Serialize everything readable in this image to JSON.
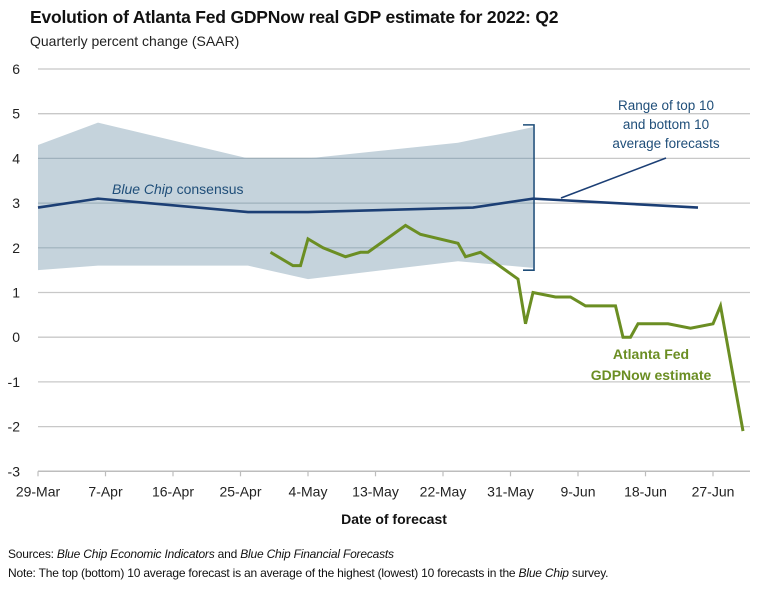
{
  "chart_data": {
    "type": "line",
    "title": "Evolution of Atlanta Fed GDPNow real GDP estimate for 2022: Q2",
    "subtitle": "Quarterly percent change (SAAR)",
    "xlabel": "Date of forecast",
    "ylabel": "",
    "x_ticks": [
      "29-Mar",
      "7-Apr",
      "16-Apr",
      "25-Apr",
      "4-May",
      "13-May",
      "22-May",
      "31-May",
      "9-Jun",
      "18-Jun",
      "27-Jun"
    ],
    "x_tick_days": [
      0,
      9,
      18,
      27,
      36,
      45,
      54,
      63,
      72,
      81,
      90
    ],
    "x_range_days": [
      0,
      95
    ],
    "x_origin": "29-Mar-2022",
    "y_ticks": [
      6,
      5,
      4,
      3,
      2,
      1,
      0,
      -1,
      -2,
      -3
    ],
    "ylim": [
      -3,
      6
    ],
    "grid": true,
    "series": [
      {
        "name": "Range of top 10 and bottom 10 average forecasts",
        "kind": "band",
        "color": "#c5d3dc",
        "x_days": [
          0,
          8,
          28,
          36,
          56,
          66
        ],
        "dates": [
          "29-Mar",
          "6-Apr",
          "26-Apr",
          "4-May",
          "24-May",
          "3-Jun"
        ],
        "upper": [
          4.3,
          4.8,
          4.0,
          4.0,
          4.35,
          4.7
        ],
        "lower": [
          1.5,
          1.6,
          1.6,
          1.3,
          1.7,
          1.55
        ]
      },
      {
        "name": "Blue Chip consensus",
        "kind": "line",
        "color": "#1c3f75",
        "x_days": [
          0,
          8,
          28,
          36,
          58,
          66,
          88
        ],
        "dates": [
          "29-Mar",
          "6-Apr",
          "26-Apr",
          "4-May",
          "26-May",
          "3-Jun",
          "25-Jun"
        ],
        "values": [
          2.9,
          3.1,
          2.8,
          2.8,
          2.9,
          3.1,
          2.9
        ]
      },
      {
        "name": "Atlanta Fed GDPNow estimate",
        "kind": "line",
        "color": "#6b8e23",
        "x_days": [
          31,
          34,
          35,
          36,
          38,
          41,
          43,
          44,
          49,
          51,
          56,
          57,
          59,
          64,
          65,
          66,
          69,
          71,
          73,
          77,
          78,
          79,
          80,
          84,
          87,
          90,
          91,
          94
        ],
        "dates": [
          "29-Apr",
          "2-May",
          "3-May",
          "4-May",
          "6-May",
          "9-May",
          "11-May",
          "12-May",
          "17-May",
          "19-May",
          "24-May",
          "25-May",
          "27-May",
          "1-Jun",
          "2-Jun",
          "3-Jun",
          "6-Jun",
          "8-Jun",
          "10-Jun",
          "14-Jun",
          "15-Jun",
          "16-Jun",
          "17-Jun",
          "21-Jun",
          "24-Jun",
          "27-Jun",
          "28-Jun",
          "1-Jul"
        ],
        "values": [
          1.9,
          1.6,
          1.6,
          2.2,
          2.0,
          1.8,
          1.9,
          1.9,
          2.5,
          2.3,
          2.1,
          1.8,
          1.9,
          1.3,
          0.3,
          1.0,
          0.9,
          0.9,
          0.7,
          0.7,
          0.0,
          0.0,
          0.3,
          0.3,
          0.2,
          0.3,
          0.7,
          -2.1
        ]
      }
    ],
    "annotations": {
      "range_label": [
        "Range of top 10",
        "and bottom 10",
        "average forecasts"
      ],
      "bluechip_label_italic": "Blue Chip",
      "bluechip_label_rest": " consensus",
      "gdpnow_label": [
        "Atlanta Fed",
        "GDPNow estimate"
      ]
    },
    "legend": "none"
  },
  "footer": {
    "sources_label": "Sources:",
    "sources_italic_1": "Blue Chip Economic Indicators",
    "sources_mid": " and ",
    "sources_italic_2": "Blue Chip Financial Forecasts",
    "note_label": "Note:",
    "note_text": " The top (bottom) 10 average forecast is an average of the highest (lowest) 10 forecasts in the ",
    "note_italic": "Blue Chip",
    "note_end": " survey."
  },
  "colors": {
    "grid": "#c8c8c8",
    "band": "#c5d3dc",
    "band_grid": "#8fa3b0",
    "bluechip": "#1c3f75",
    "gdpnow": "#6b8e23",
    "annotation": "#1f4e79"
  }
}
